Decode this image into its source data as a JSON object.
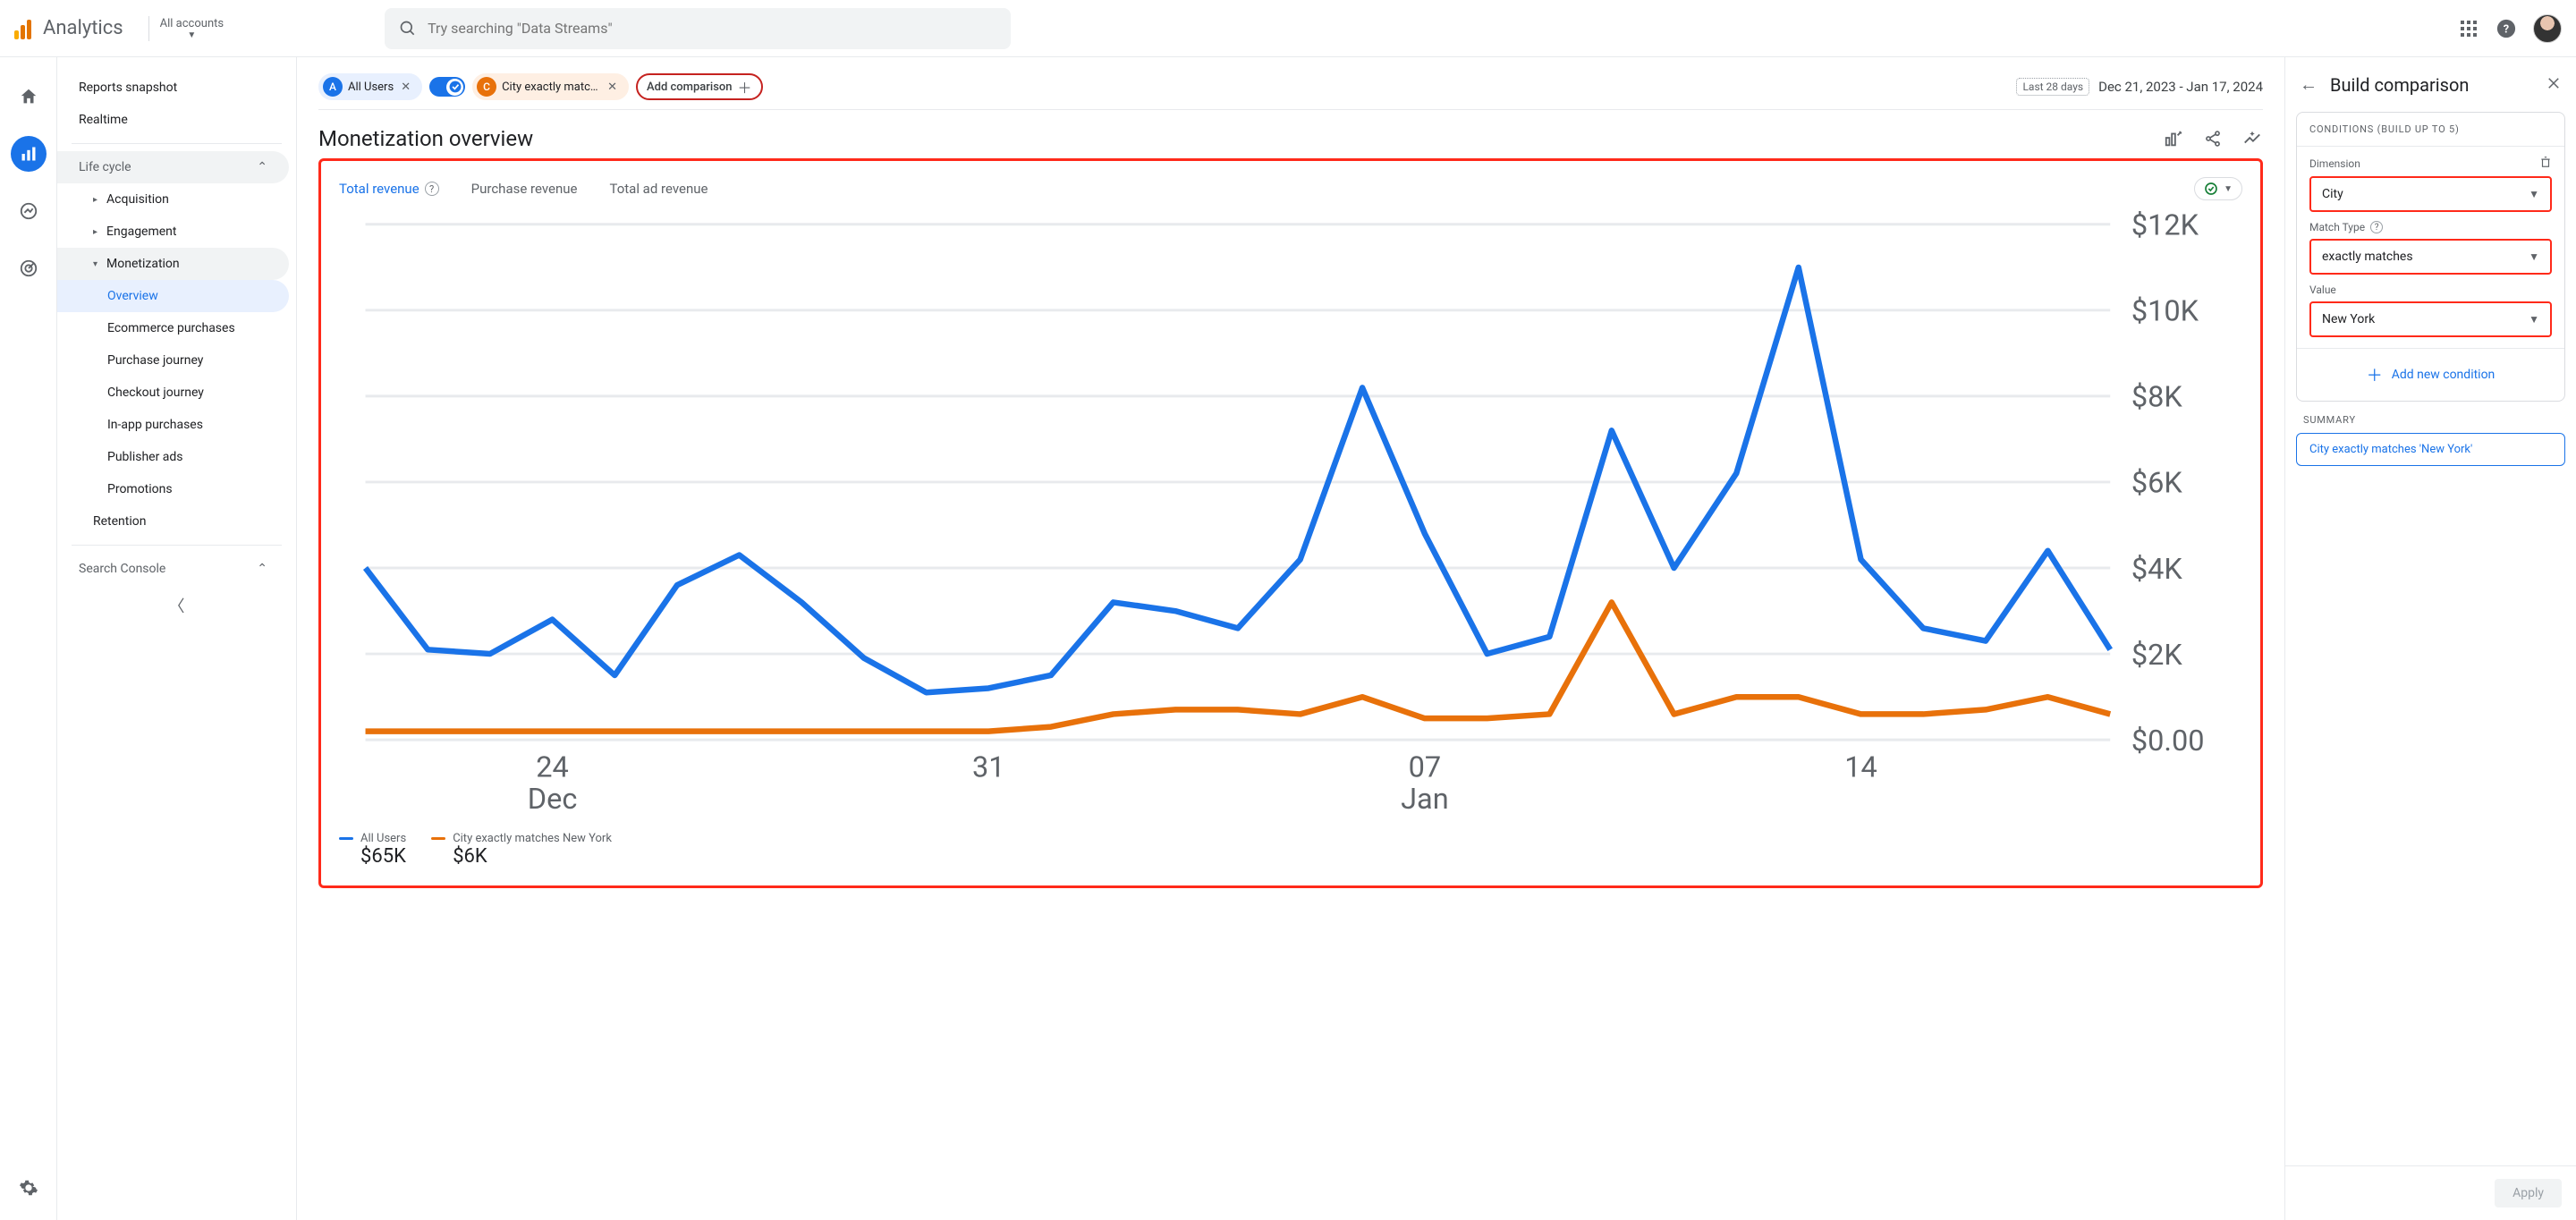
{
  "header": {
    "product": "Analytics",
    "account_label": "All accounts",
    "search_placeholder": "Try searching \"Data Streams\""
  },
  "sidebar": {
    "reports_snapshot": "Reports snapshot",
    "realtime": "Realtime",
    "life_cycle": "Life cycle",
    "acquisition": "Acquisition",
    "engagement": "Engagement",
    "monetization": "Monetization",
    "monetization_items": {
      "overview": "Overview",
      "ecommerce": "Ecommerce purchases",
      "purchase_journey": "Purchase journey",
      "checkout_journey": "Checkout journey",
      "in_app": "In-app purchases",
      "publisher_ads": "Publisher ads",
      "promotions": "Promotions"
    },
    "retention": "Retention",
    "search_console": "Search Console"
  },
  "chips": {
    "all_users": "All Users",
    "city": "City exactly matches N...",
    "add_comparison": "Add comparison",
    "last": "Last 28 days",
    "range": "Dec 21, 2023 - Jan 17, 2024"
  },
  "page": {
    "title": "Monetization overview"
  },
  "chart": {
    "tabs": {
      "total_revenue": "Total revenue",
      "purchase_revenue": "Purchase revenue",
      "total_ad_revenue": "Total ad revenue"
    },
    "y_ticks": [
      "$12K",
      "$10K",
      "$8K",
      "$6K",
      "$4K",
      "$2K",
      "$0.00"
    ],
    "x_ticks": [
      {
        "major": "24",
        "minor": "Dec"
      },
      {
        "major": "31",
        "minor": ""
      },
      {
        "major": "07",
        "minor": "Jan"
      },
      {
        "major": "14",
        "minor": ""
      }
    ],
    "series_a": {
      "name": "All Users",
      "color": "#1a73e8",
      "total": "$65K",
      "points": [
        4.0,
        2.1,
        2.0,
        2.8,
        1.5,
        3.6,
        4.3,
        3.2,
        1.9,
        1.1,
        1.2,
        1.5,
        3.2,
        3.0,
        2.6,
        4.2,
        8.2,
        4.8,
        2.0,
        2.4,
        7.2,
        4.0,
        6.2,
        11.0,
        4.2,
        2.6,
        2.3,
        4.4,
        2.1
      ]
    },
    "series_b": {
      "name": "City exactly matches New York",
      "color": "#e8710a",
      "total": "$6K",
      "points": [
        0.2,
        0.2,
        0.2,
        0.2,
        0.2,
        0.2,
        0.2,
        0.2,
        0.2,
        0.2,
        0.2,
        0.3,
        0.6,
        0.7,
        0.7,
        0.6,
        1.0,
        0.5,
        0.5,
        0.6,
        3.2,
        0.6,
        1.0,
        1.0,
        0.6,
        0.6,
        0.7,
        1.0,
        0.6
      ]
    },
    "y_max": 12,
    "grid_color": "#e8eaed",
    "bg": "#ffffff"
  },
  "panel": {
    "title": "Build comparison",
    "cond_header": "CONDITIONS (BUILD UP TO 5)",
    "dimension_label": "Dimension",
    "dimension_value": "City",
    "match_label": "Match Type",
    "match_value": "exactly matches",
    "value_label": "Value",
    "value_value": "New York",
    "add_condition": "Add new condition",
    "summary_header": "SUMMARY",
    "summary_chip": "City exactly matches 'New York'",
    "apply": "Apply"
  }
}
